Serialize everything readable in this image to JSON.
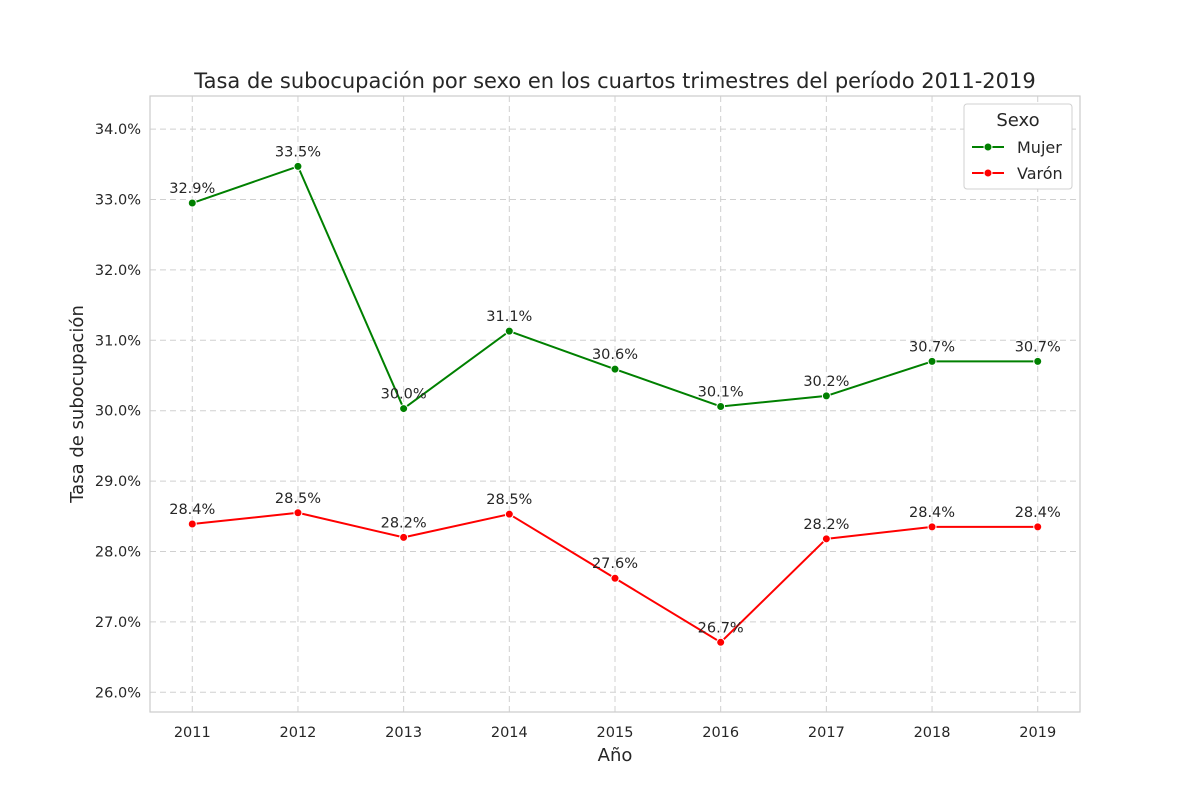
{
  "chart_data": {
    "type": "line",
    "title": "Tasa de subocupación por sexo en los cuartos trimestres del período 2011-2019",
    "xlabel": "Año",
    "ylabel": "Tasa de subocupación",
    "x": [
      2011,
      2012,
      2013,
      2014,
      2015,
      2016,
      2017,
      2018,
      2019
    ],
    "x_tick_labels": [
      "2011",
      "2012",
      "2013",
      "2014",
      "2015",
      "2016",
      "2017",
      "2018",
      "2019"
    ],
    "ylim": [
      25.72,
      34.47
    ],
    "y_ticks": [
      26.0,
      27.0,
      28.0,
      29.0,
      30.0,
      31.0,
      32.0,
      33.0,
      34.0
    ],
    "y_tick_labels": [
      "26.0%",
      "27.0%",
      "28.0%",
      "29.0%",
      "30.0%",
      "31.0%",
      "32.0%",
      "33.0%",
      "34.0%"
    ],
    "grid": true,
    "legend": {
      "title": "Sexo",
      "position": "top-right"
    },
    "series": [
      {
        "name": "Mujer",
        "color": "#008000",
        "values": [
          32.95,
          33.47,
          30.03,
          31.13,
          30.59,
          30.06,
          30.21,
          30.7,
          30.7
        ],
        "labels": [
          "32.9%",
          "33.5%",
          "30.0%",
          "31.1%",
          "30.6%",
          "30.1%",
          "30.2%",
          "30.7%",
          "30.7%"
        ]
      },
      {
        "name": "Varón",
        "color": "#ff0000",
        "values": [
          28.39,
          28.55,
          28.2,
          28.53,
          27.62,
          26.71,
          28.18,
          28.35,
          28.35
        ],
        "labels": [
          "28.4%",
          "28.5%",
          "28.2%",
          "28.5%",
          "27.6%",
          "26.7%",
          "28.2%",
          "28.4%",
          "28.4%"
        ]
      }
    ]
  }
}
